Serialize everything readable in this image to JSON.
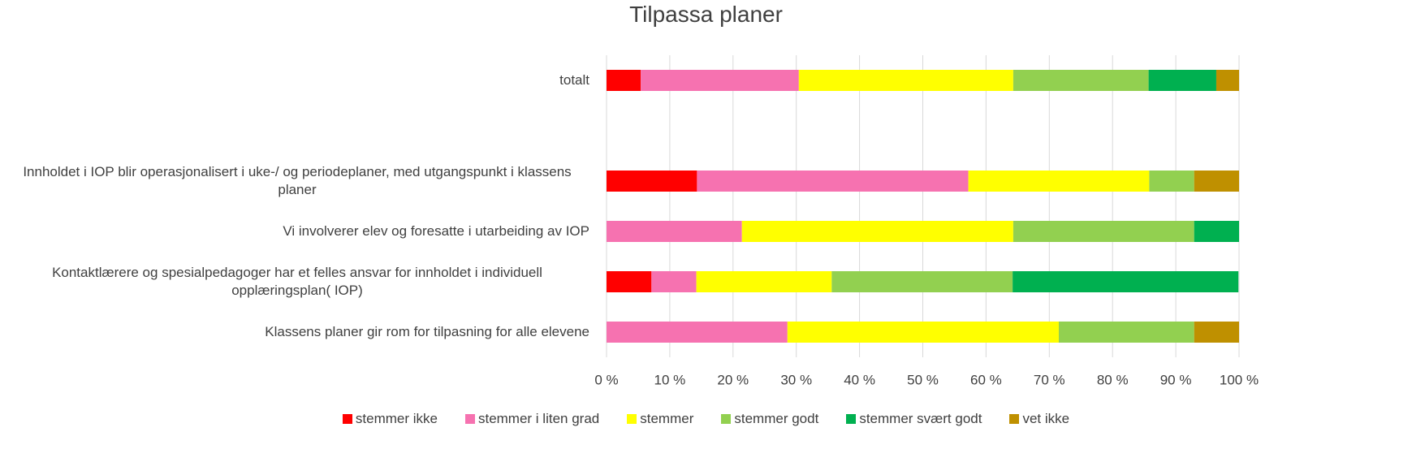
{
  "chart_data": {
    "type": "stacked_bar_horizontal",
    "title": "Tilpassa planer",
    "categories": [
      "totalt",
      null,
      "Innholdet i IOP blir operasjonalisert i uke-/ og periodeplaner, med utgangspunkt i klassens planer",
      "Vi involverer elev og foresatte i utarbeiding av IOP",
      "Kontaktlærere og spesialpedagoger har et felles ansvar for innholdet i individuell opplæringsplan( IOP)",
      "Klassens planer gir rom for tilpasning for alle elevene"
    ],
    "series": [
      {
        "name": "stemmer ikke",
        "color": "#ff0000",
        "values": [
          5.4,
          null,
          14.3,
          0,
          7.1,
          0
        ]
      },
      {
        "name": "stemmer i liten grad",
        "color": "#f672b0",
        "values": [
          25.0,
          null,
          42.9,
          21.4,
          7.1,
          28.6
        ]
      },
      {
        "name": "stemmer",
        "color": "#ffff00",
        "values": [
          33.9,
          null,
          28.6,
          42.9,
          21.4,
          42.9
        ]
      },
      {
        "name": "stemmer godt",
        "color": "#92d050",
        "values": [
          21.4,
          null,
          7.1,
          28.6,
          28.6,
          21.4
        ]
      },
      {
        "name": "stemmer svært godt",
        "color": "#00b050",
        "values": [
          10.7,
          null,
          0,
          7.1,
          35.7,
          0
        ]
      },
      {
        "name": "vet ikke",
        "color": "#bf9000",
        "values": [
          3.6,
          null,
          7.1,
          0,
          0,
          7.1
        ]
      }
    ],
    "xlim": [
      0,
      100
    ],
    "xticks": [
      {
        "value": 0,
        "label": "0 %"
      },
      {
        "value": 10,
        "label": "10 %"
      },
      {
        "value": 20,
        "label": "20 %"
      },
      {
        "value": 30,
        "label": "30 %"
      },
      {
        "value": 40,
        "label": "40 %"
      },
      {
        "value": 50,
        "label": "50 %"
      },
      {
        "value": 60,
        "label": "60 %"
      },
      {
        "value": 70,
        "label": "70 %"
      },
      {
        "value": 80,
        "label": "80 %"
      },
      {
        "value": 90,
        "label": "90 %"
      },
      {
        "value": 100,
        "label": "100 %"
      }
    ],
    "grid": true,
    "legend": "bottom"
  }
}
